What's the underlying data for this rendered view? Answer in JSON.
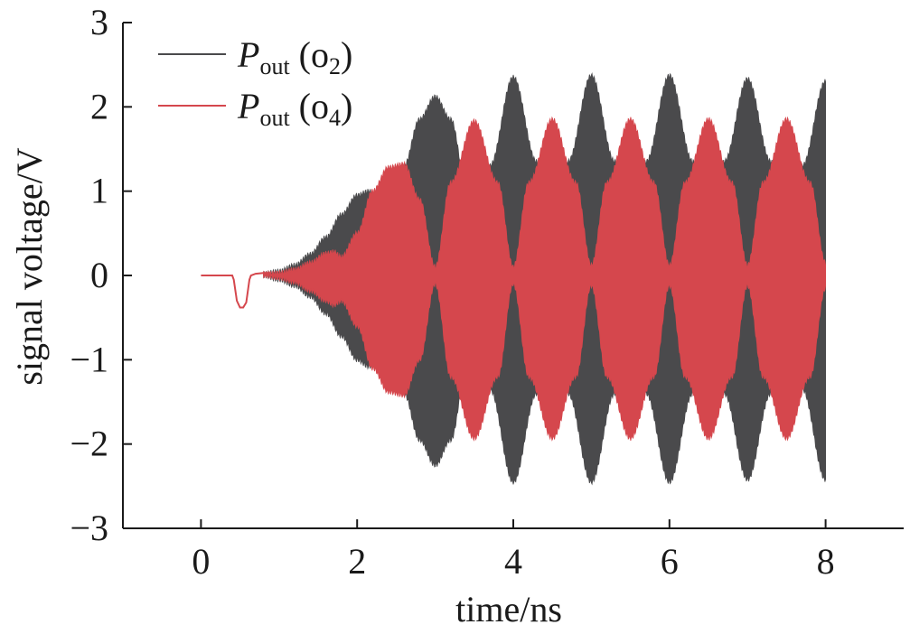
{
  "chart_data": {
    "type": "line",
    "xlabel": "time/ns",
    "ylabel": "signal voltage/V",
    "xlim": [
      -1,
      9
    ],
    "ylim": [
      -3,
      3
    ],
    "xticks": [
      0,
      2,
      4,
      6,
      8
    ],
    "yticks": [
      3,
      2,
      1,
      0,
      -1,
      -2,
      -3
    ],
    "ytick_labels": [
      "3",
      "2",
      "1",
      "0",
      "−1",
      "−2",
      "−3"
    ],
    "grid": false,
    "legend_position": "top-left",
    "series": [
      {
        "name": "Pout (o2)",
        "legend": {
          "main": "P",
          "sub1": "out",
          "paren": " (o",
          "sub2": "2",
          "close": ")"
        },
        "color": "#4a4a4c",
        "envelope": {
          "t": [
            0.8,
            1.0,
            1.2,
            1.4,
            1.6,
            1.8,
            2.0,
            2.15,
            2.3,
            2.6,
            2.8,
            3.0,
            3.2,
            3.4,
            3.5,
            3.7,
            4.0,
            4.3,
            4.5,
            4.7,
            5.0,
            5.3,
            5.5,
            5.7,
            6.0,
            6.3,
            6.5,
            6.7,
            7.0,
            7.3,
            7.5,
            7.7,
            8.0
          ],
          "upper": [
            0.02,
            0.05,
            0.12,
            0.25,
            0.45,
            0.72,
            0.95,
            1.0,
            0.85,
            1.3,
            1.85,
            2.12,
            1.85,
            1.05,
            0.4,
            1.3,
            2.35,
            1.35,
            0.35,
            1.35,
            2.37,
            1.35,
            0.35,
            1.35,
            2.37,
            1.35,
            0.35,
            1.35,
            2.33,
            1.35,
            0.35,
            1.3,
            2.3
          ],
          "lower": [
            0.0,
            -0.05,
            -0.12,
            -0.25,
            -0.45,
            -0.72,
            -1.0,
            -1.08,
            -0.95,
            -1.4,
            -1.95,
            -2.25,
            -1.95,
            -1.1,
            -0.4,
            -1.35,
            -2.45,
            -1.4,
            -0.35,
            -1.4,
            -2.45,
            -1.4,
            -0.35,
            -1.4,
            -2.45,
            -1.4,
            -0.35,
            -1.4,
            -2.42,
            -1.4,
            -0.35,
            -1.35,
            -2.42
          ]
        }
      },
      {
        "name": "Pout (o4)",
        "legend": {
          "main": "P",
          "sub1": "out",
          "paren": " (o",
          "sub2": "4",
          "close": ")"
        },
        "color": "#d5474d",
        "envelope": {
          "t": [
            0.8,
            1.0,
            1.2,
            1.4,
            1.6,
            1.7,
            1.8,
            2.0,
            2.2,
            2.4,
            2.6,
            2.8,
            3.0,
            3.2,
            3.5,
            3.8,
            4.0,
            4.2,
            4.5,
            4.8,
            5.0,
            5.2,
            5.5,
            5.8,
            6.0,
            6.2,
            6.5,
            6.8,
            7.0,
            7.2,
            7.5,
            7.8,
            8.0
          ],
          "upper": [
            0.02,
            0.03,
            0.07,
            0.15,
            0.26,
            0.28,
            0.22,
            0.5,
            1.0,
            1.28,
            1.32,
            0.9,
            0.1,
            1.1,
            1.83,
            1.1,
            0.1,
            1.1,
            1.85,
            1.1,
            0.12,
            1.1,
            1.85,
            1.1,
            0.12,
            1.1,
            1.85,
            1.1,
            0.12,
            1.1,
            1.85,
            1.1,
            0.15
          ],
          "lower": [
            0.0,
            -0.03,
            -0.08,
            -0.18,
            -0.3,
            -0.35,
            -0.3,
            -0.6,
            -1.1,
            -1.38,
            -1.42,
            -1.0,
            -0.1,
            -1.2,
            -1.93,
            -1.2,
            -0.1,
            -1.2,
            -1.93,
            -1.2,
            -0.12,
            -1.2,
            -1.93,
            -1.2,
            -0.12,
            -1.2,
            -1.93,
            -1.2,
            -0.12,
            -1.2,
            -1.93,
            -1.2,
            -0.15
          ]
        },
        "pulse": {
          "t": [
            0.0,
            0.4,
            0.42,
            0.46,
            0.5,
            0.54,
            0.58,
            0.62,
            0.64,
            0.7,
            0.8,
            0.9
          ],
          "v": [
            0.0,
            0.0,
            -0.05,
            -0.3,
            -0.38,
            -0.38,
            -0.32,
            -0.05,
            0.0,
            0.02,
            0.03,
            0.03
          ]
        }
      }
    ]
  }
}
